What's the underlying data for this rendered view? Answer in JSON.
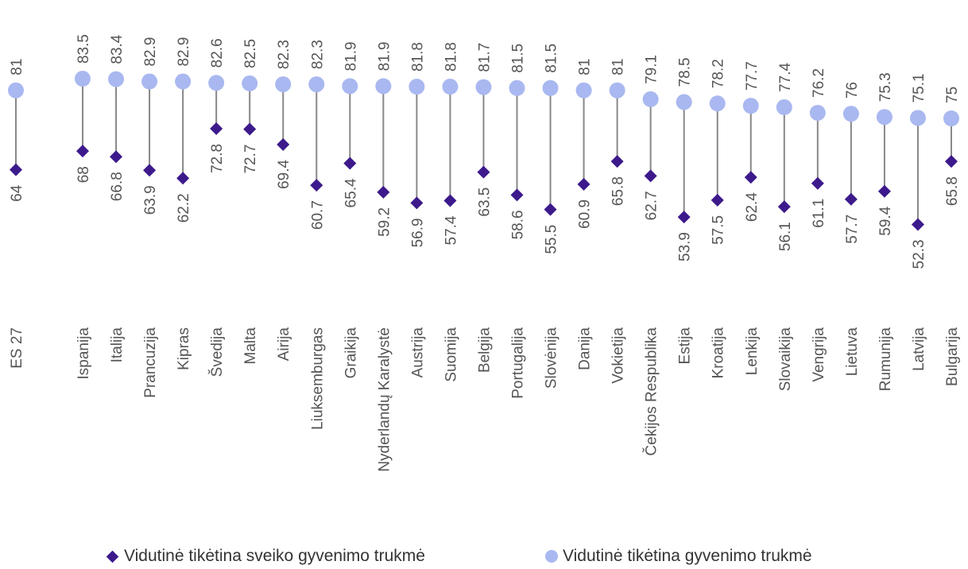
{
  "chart_data": {
    "type": "dumbbell",
    "title": "",
    "xlabel": "",
    "ylabel": "",
    "ylim": [
      50,
      85
    ],
    "grid": false,
    "legend_position": "bottom",
    "categories": [
      "ES 27",
      "Ispanija",
      "Italija",
      "Prancuzija",
      "Kipras",
      "Švedija",
      "Malta",
      "Airija",
      "Liuksemburgas",
      "Graikija",
      "Nyderlandų Karalystė",
      "Austrija",
      "Suomija",
      "Belgija",
      "Portugalija",
      "Slovėnija",
      "Danija",
      "Vokietija",
      "Čekijos Respublika",
      "Estija",
      "Kroatija",
      "Lenkija",
      "Slovaikija",
      "Vengrija",
      "Lietuva",
      "Rumunija",
      "Latvija",
      "Bulgarija"
    ],
    "series": [
      {
        "name": "Vidutinė tikėtina sveiko gyvenimo trukmė",
        "marker": "diamond",
        "color": "#3d1a8c",
        "values": [
          64,
          68,
          66.8,
          63.9,
          62.2,
          72.8,
          72.7,
          69.4,
          60.7,
          65.4,
          59.2,
          56.9,
          57.4,
          63.5,
          58.6,
          55.5,
          60.9,
          65.8,
          62.7,
          53.9,
          57.5,
          62.4,
          56.1,
          61.1,
          57.7,
          59.4,
          52.3,
          65.8
        ]
      },
      {
        "name": "Vidutinė tikėtina gyvenimo trukmė",
        "marker": "circle",
        "color": "#a9b8f0",
        "values": [
          81,
          83.5,
          83.4,
          82.9,
          82.9,
          82.6,
          82.5,
          82.3,
          82.3,
          81.9,
          81.9,
          81.8,
          81.8,
          81.7,
          81.5,
          81.5,
          81,
          81,
          79.1,
          78.5,
          78.2,
          77.7,
          77.4,
          76.2,
          76,
          75.3,
          75.1,
          75
        ]
      }
    ],
    "connector_color": "#888888",
    "label_color": "#555555"
  }
}
